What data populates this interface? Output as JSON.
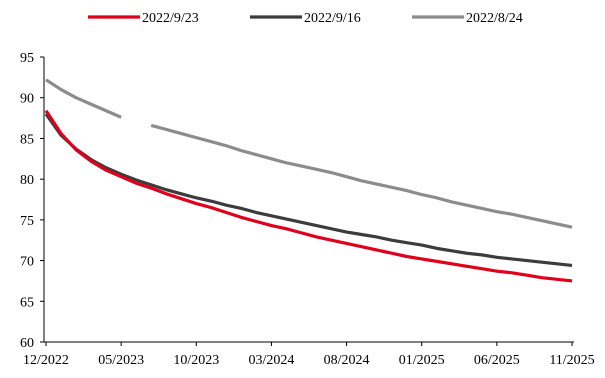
{
  "chart_data": {
    "type": "line",
    "title": "",
    "xlabel": "",
    "ylabel": "",
    "ylim": [
      60,
      95
    ],
    "yticks": [
      60,
      65,
      70,
      75,
      80,
      85,
      90,
      95
    ],
    "xtick_labels": [
      "12/2022",
      "05/2023",
      "10/2023",
      "03/2024",
      "08/2024",
      "01/2025",
      "06/2025",
      "11/2025"
    ],
    "x_months": [
      "12/2022",
      "01/2023",
      "02/2023",
      "03/2023",
      "04/2023",
      "05/2023",
      "06/2023",
      "07/2023",
      "08/2023",
      "09/2023",
      "10/2023",
      "11/2023",
      "12/2023",
      "01/2024",
      "02/2024",
      "03/2024",
      "04/2024",
      "05/2024",
      "06/2024",
      "07/2024",
      "08/2024",
      "09/2024",
      "10/2024",
      "11/2024",
      "12/2024",
      "01/2025",
      "02/2025",
      "03/2025",
      "04/2025",
      "05/2025",
      "06/2025",
      "07/2025",
      "08/2025",
      "09/2025",
      "10/2025",
      "11/2025"
    ],
    "grid": false,
    "legend_position": "top",
    "series": [
      {
        "name": "2022/9/23",
        "color": "#e0001b",
        "values": [
          88.4,
          85.6,
          83.6,
          82.2,
          81.1,
          80.3,
          79.5,
          78.9,
          78.2,
          77.6,
          77.0,
          76.5,
          75.9,
          75.3,
          74.8,
          74.3,
          73.9,
          73.4,
          72.9,
          72.5,
          72.1,
          71.7,
          71.3,
          70.9,
          70.5,
          70.2,
          69.9,
          69.6,
          69.3,
          69.0,
          68.7,
          68.5,
          68.2,
          67.9,
          67.7,
          67.5
        ]
      },
      {
        "name": "2022/9/16",
        "color": "#3c3c3c",
        "values": [
          88.0,
          85.4,
          83.7,
          82.4,
          81.4,
          80.6,
          79.9,
          79.3,
          78.7,
          78.2,
          77.7,
          77.3,
          76.8,
          76.4,
          75.9,
          75.5,
          75.1,
          74.7,
          74.3,
          73.9,
          73.5,
          73.2,
          72.9,
          72.5,
          72.2,
          71.9,
          71.5,
          71.2,
          70.9,
          70.7,
          70.4,
          70.2,
          70.0,
          69.8,
          69.6,
          69.4
        ]
      },
      {
        "name": "2022/8/24",
        "color": "#8c8c8c",
        "values": [
          92.2,
          91.0,
          90.0,
          89.2,
          88.4,
          87.6,
          null,
          86.6,
          86.1,
          85.6,
          85.1,
          84.6,
          84.1,
          83.5,
          83.0,
          82.5,
          82.0,
          81.6,
          81.2,
          80.8,
          80.3,
          79.8,
          79.4,
          79.0,
          78.6,
          78.1,
          77.7,
          77.2,
          76.8,
          76.4,
          76.0,
          75.7,
          75.3,
          74.9,
          74.5,
          74.1
        ]
      }
    ]
  }
}
